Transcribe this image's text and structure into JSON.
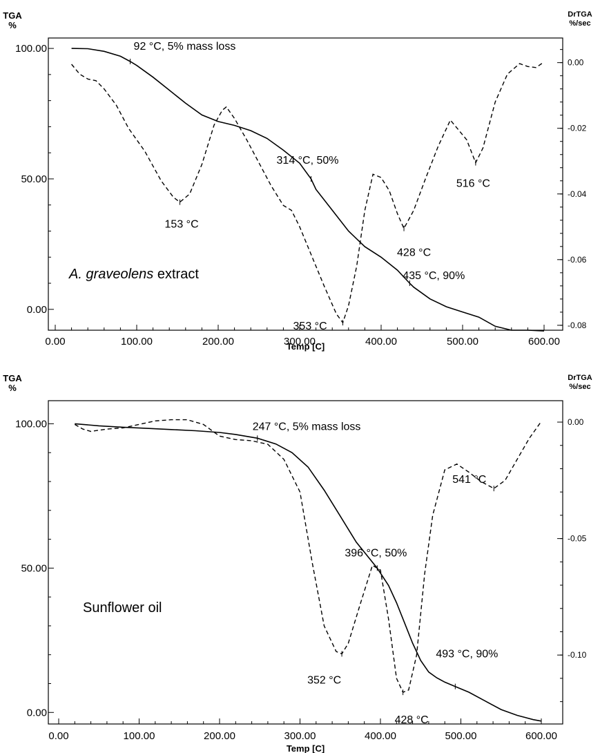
{
  "chart_data": [
    {
      "type": "line",
      "sample_label": "extract",
      "sample_label_italic": "A. graveolens",
      "xlabel": "Temp  [C]",
      "ylabel_line1": "TGA",
      "ylabel_line2": "%",
      "y2label_line1": "DrTGA",
      "y2label_line2": "%/sec",
      "xlim": [
        0,
        600
      ],
      "ylim": [
        -8,
        104
      ],
      "y2lim": [
        -0.0815,
        0.0075
      ],
      "x_ticks": [
        "0.00",
        "100.00",
        "200.00",
        "300.00",
        "400.00",
        "500.00",
        "600.00"
      ],
      "y_ticks": [
        "0.00",
        "50.00",
        "100.00"
      ],
      "y2_ticks": [
        "0.00",
        "-0.02",
        "-0.04",
        "-0.06",
        "-0.08"
      ],
      "series": [
        {
          "style": "solid",
          "axis": "left",
          "x": [
            20,
            40,
            60,
            80,
            92,
            100,
            120,
            140,
            160,
            180,
            200,
            220,
            240,
            260,
            280,
            300,
            314,
            320,
            340,
            360,
            380,
            400,
            420,
            435,
            440,
            460,
            480,
            500,
            520,
            540,
            560,
            580,
            600
          ],
          "y": [
            100,
            99.9,
            98.9,
            97,
            95,
            93.5,
            89,
            84,
            79,
            74.5,
            72,
            70.5,
            68.5,
            65.5,
            61,
            56,
            50,
            46,
            38,
            30,
            24,
            20,
            15,
            10,
            8.5,
            4,
            1,
            -1,
            -3,
            -6.5,
            -8,
            -8,
            -8.3
          ]
        },
        {
          "style": "dashed",
          "axis": "right",
          "x": [
            20,
            30,
            40,
            50,
            60,
            75,
            90,
            110,
            130,
            145,
            153,
            165,
            180,
            195,
            205,
            210,
            220,
            235,
            250,
            265,
            280,
            290,
            300,
            315,
            330,
            345,
            353,
            360,
            370,
            380,
            390,
            400,
            410,
            420,
            428,
            440,
            455,
            470,
            485,
            495,
            505,
            516,
            525,
            540,
            555,
            570,
            580,
            590,
            600
          ],
          "y": [
            -0.0005,
            -0.0035,
            -0.005,
            -0.0055,
            -0.008,
            -0.013,
            -0.02,
            -0.027,
            -0.036,
            -0.041,
            -0.0425,
            -0.04,
            -0.031,
            -0.019,
            -0.0145,
            -0.0135,
            -0.017,
            -0.0235,
            -0.0305,
            -0.0375,
            -0.0435,
            -0.045,
            -0.05,
            -0.059,
            -0.068,
            -0.0765,
            -0.0792,
            -0.074,
            -0.062,
            -0.045,
            -0.034,
            -0.035,
            -0.039,
            -0.046,
            -0.0505,
            -0.045,
            -0.035,
            -0.0255,
            -0.0175,
            -0.0205,
            -0.0235,
            -0.0305,
            -0.026,
            -0.012,
            -0.0035,
            -0.0003,
            -0.0012,
            -0.0015,
            0.0002
          ]
        }
      ],
      "annotations": [
        {
          "text": "92 °C, 5% mass loss",
          "x": 92,
          "y": 95,
          "series": 0
        },
        {
          "text": "153 °C",
          "x": 153,
          "y": -0.0425,
          "series": 1
        },
        {
          "text": "314 °C, 50%",
          "x": 314,
          "y": 50,
          "series": 0
        },
        {
          "text": "428 °C",
          "x": 428,
          "y": -0.0505,
          "series": 1
        },
        {
          "text": "516 °C",
          "x": 516,
          "y": -0.0305,
          "series": 1
        },
        {
          "text": "435 °C, 90%",
          "x": 435,
          "y": 10,
          "series": 0
        },
        {
          "text": "353 °C",
          "x": 353,
          "y": -0.0792,
          "series": 1
        }
      ]
    },
    {
      "type": "line",
      "sample_label": "Sunflower oil",
      "sample_label_italic": "",
      "xlabel": "Temp  [C]",
      "ylabel_line1": "TGA",
      "ylabel_line2": "%",
      "y2label_line1": "DrTGA",
      "y2label_line2": "%/sec",
      "xlim": [
        0,
        600
      ],
      "ylim": [
        -4,
        108
      ],
      "y2lim": [
        -0.1296,
        0.0092
      ],
      "x_ticks": [
        "0.00",
        "100.00",
        "200.00",
        "300.00",
        "400.00",
        "500.00",
        "600.00"
      ],
      "y_ticks": [
        "0.00",
        "50.00",
        "100.00"
      ],
      "y2_ticks": [
        "0.00",
        "-0.05",
        "-0.10"
      ],
      "series": [
        {
          "style": "solid",
          "axis": "left",
          "x": [
            20,
            50,
            80,
            110,
            140,
            170,
            200,
            220,
            247,
            270,
            290,
            310,
            330,
            350,
            370,
            396,
            410,
            420,
            430,
            440,
            450,
            460,
            470,
            480,
            493,
            510,
            530,
            550,
            570,
            590,
            600
          ],
          "y": [
            100,
            99.3,
            98.8,
            98.4,
            98,
            97.6,
            97,
            96.3,
            95,
            93,
            90,
            85,
            77,
            68,
            59,
            50,
            44,
            38,
            31,
            24,
            18,
            14,
            12,
            10.5,
            9,
            7,
            4,
            1,
            -1,
            -2.5,
            -3
          ]
        },
        {
          "style": "dashed",
          "axis": "right",
          "x": [
            20,
            30,
            40,
            60,
            80,
            100,
            120,
            140,
            160,
            180,
            200,
            220,
            240,
            260,
            280,
            300,
            315,
            330,
            345,
            352,
            360,
            375,
            390,
            400,
            410,
            420,
            428,
            435,
            445,
            455,
            465,
            480,
            495,
            510,
            525,
            541,
            555,
            570,
            585,
            600
          ],
          "y": [
            -0.001,
            -0.003,
            -0.004,
            -0.003,
            -0.0025,
            -0.001,
            0.0005,
            0.001,
            0.001,
            -0.001,
            -0.006,
            -0.0075,
            -0.008,
            -0.0095,
            -0.016,
            -0.03,
            -0.06,
            -0.0875,
            -0.0985,
            -0.0995,
            -0.095,
            -0.078,
            -0.0615,
            -0.0635,
            -0.0845,
            -0.11,
            -0.116,
            -0.115,
            -0.1,
            -0.065,
            -0.04,
            -0.0205,
            -0.018,
            -0.0215,
            -0.0255,
            -0.0285,
            -0.025,
            -0.016,
            -0.007,
            0.0003
          ]
        }
      ],
      "annotations": [
        {
          "text": "247 °C, 5% mass loss",
          "x": 247,
          "y": 95,
          "series": 0
        },
        {
          "text": "396 °C, 50%",
          "x": 396,
          "y": 50,
          "series": 0
        },
        {
          "text": "541 °C",
          "x": 541,
          "y": -0.0285,
          "series": 1
        },
        {
          "text": "352 °C",
          "x": 352,
          "y": -0.0995,
          "series": 1
        },
        {
          "text": "493 °C, 90%",
          "x": 493,
          "y": 9,
          "series": 0
        },
        {
          "text": "428 °C",
          "x": 428,
          "y": -0.116,
          "series": 1
        }
      ]
    }
  ]
}
